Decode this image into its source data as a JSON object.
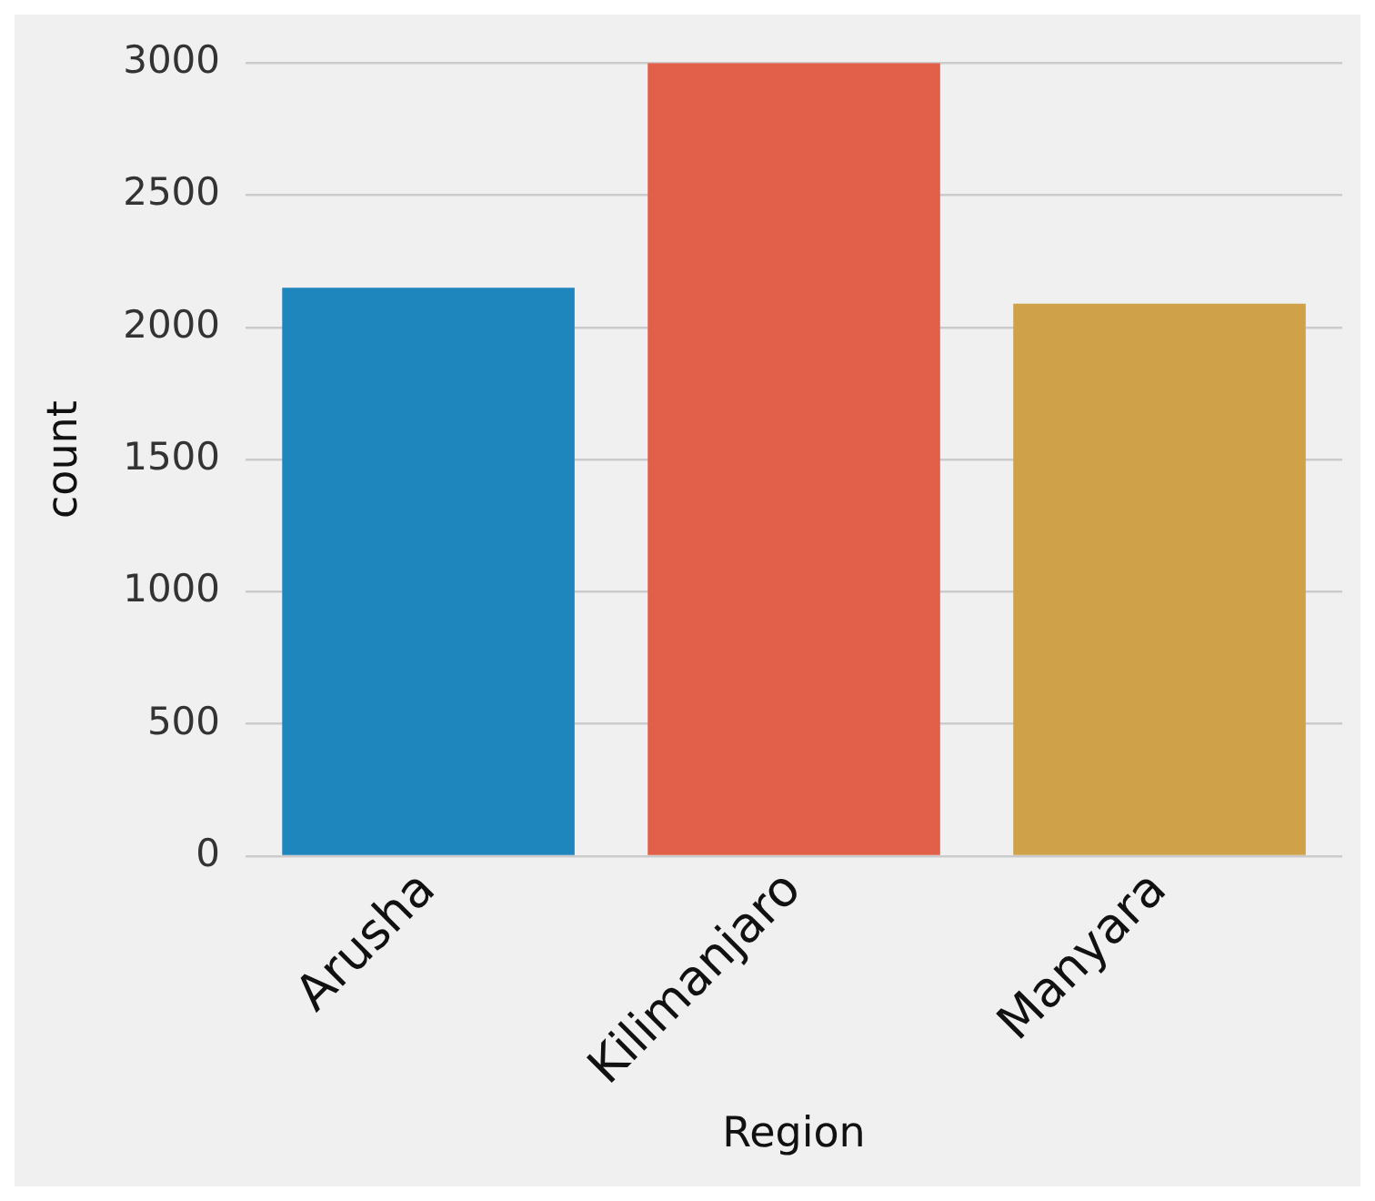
{
  "chart_data": {
    "type": "bar",
    "xlabel": "Region",
    "ylabel": "count",
    "categories": [
      "Arusha",
      "Kilimanjaro",
      "Manyara"
    ],
    "values": [
      2150,
      3000,
      2090
    ],
    "colors": [
      "#1f86bd",
      "#e2604a",
      "#cfa24a"
    ],
    "ylim": [
      0,
      3000
    ],
    "yticks": [
      0,
      500,
      1000,
      1500,
      2000,
      2500,
      3000
    ],
    "grid": "y"
  }
}
